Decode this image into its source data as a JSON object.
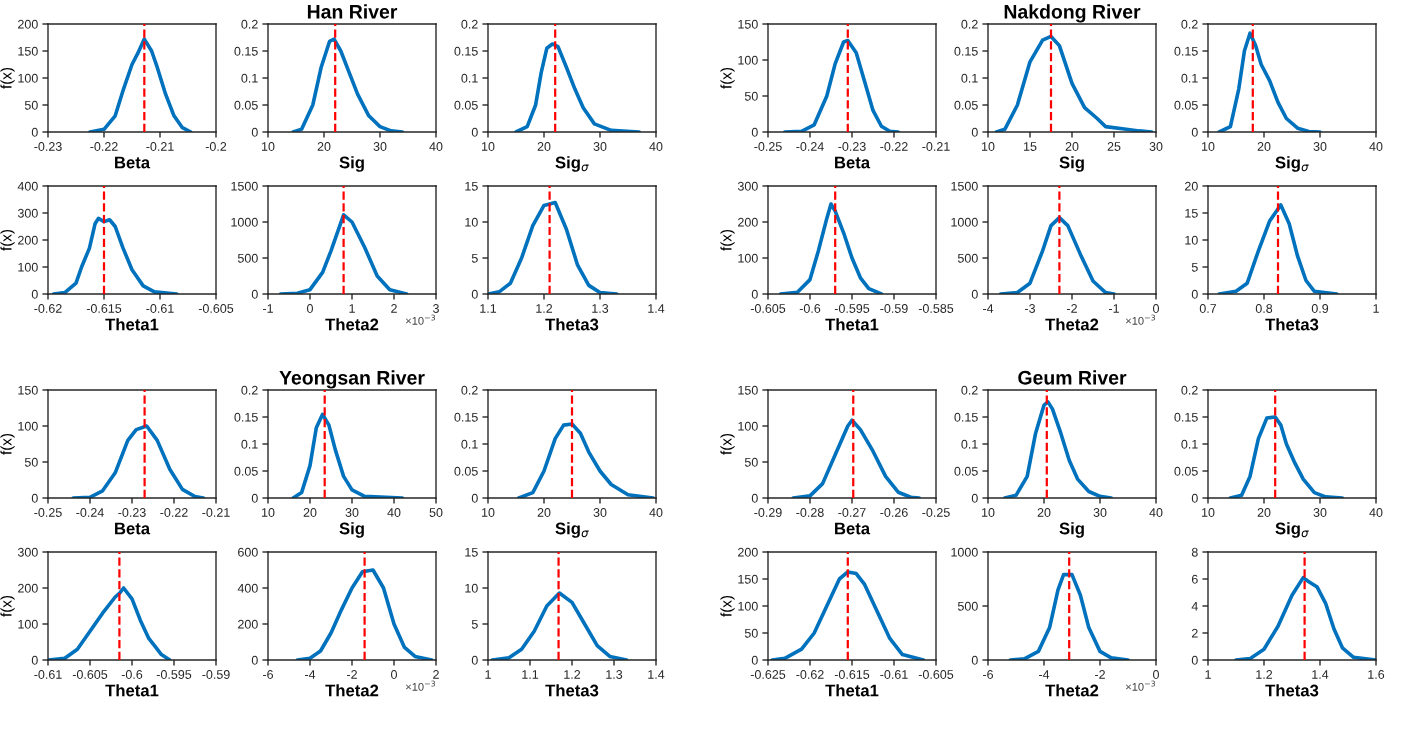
{
  "chart_data": [
    {
      "type": "line",
      "xlabel": "Beta",
      "ylabel": "f(x)",
      "xlim": [
        -0.23,
        -0.2
      ],
      "xticks": [
        -0.23,
        -0.22,
        -0.21,
        -0.2
      ],
      "ylim": [
        0,
        200
      ],
      "yticks": [
        0,
        50,
        100,
        150,
        200
      ],
      "ref_lines": [
        {
          "axis": "x",
          "value": -0.2128,
          "color": "#ff0000",
          "line_style": "dashed"
        }
      ],
      "series": [
        {
          "color": "#0072bd",
          "x": [
            -0.2225,
            -0.22,
            -0.218,
            -0.2165,
            -0.215,
            -0.214,
            -0.2128,
            -0.2115,
            -0.2105,
            -0.209,
            -0.2075,
            -0.206,
            -0.2045
          ],
          "values": [
            0,
            5,
            30,
            80,
            125,
            145,
            172,
            150,
            120,
            70,
            30,
            8,
            0
          ]
        }
      ]
    },
    {
      "type": "line",
      "title": "Han River",
      "xlabel": "Sig",
      "xlim": [
        10,
        40
      ],
      "xticks": [
        10,
        20,
        30,
        40
      ],
      "ylim": [
        0,
        0.2
      ],
      "yticks": [
        0,
        0.05,
        0.1,
        0.15,
        0.2
      ],
      "ref_lines": [
        {
          "axis": "x",
          "value": 22,
          "color": "#ff0000",
          "line_style": "dashed"
        }
      ],
      "series": [
        {
          "color": "#0072bd",
          "x": [
            14.5,
            16,
            18,
            19.5,
            21,
            21.8,
            23,
            24.5,
            26,
            28,
            30,
            32,
            34
          ],
          "values": [
            0,
            0.005,
            0.05,
            0.12,
            0.168,
            0.172,
            0.15,
            0.11,
            0.07,
            0.03,
            0.01,
            0.002,
            0
          ]
        }
      ]
    },
    {
      "type": "line",
      "xlabel": "Sig$_{σ}$",
      "xlim": [
        10,
        40
      ],
      "xticks": [
        10,
        20,
        30,
        40
      ],
      "ylim": [
        0,
        0.2
      ],
      "yticks": [
        0,
        0.05,
        0.1,
        0.15,
        0.2
      ],
      "ref_lines": [
        {
          "axis": "x",
          "value": 22,
          "color": "#ff0000",
          "line_style": "dashed"
        }
      ],
      "series": [
        {
          "color": "#0072bd",
          "x": [
            15,
            17,
            18.5,
            19.5,
            20.5,
            21.5,
            22.5,
            24,
            25.5,
            27,
            29,
            32,
            37
          ],
          "values": [
            0,
            0.01,
            0.05,
            0.11,
            0.155,
            0.163,
            0.158,
            0.12,
            0.08,
            0.045,
            0.015,
            0.003,
            0
          ]
        }
      ]
    },
    {
      "type": "line",
      "xlabel": "Theta1",
      "ylabel": "f(x)",
      "xlim": [
        -0.62,
        -0.605
      ],
      "xticks": [
        -0.62,
        -0.615,
        -0.61,
        -0.605
      ],
      "ylim": [
        0,
        400
      ],
      "yticks": [
        0,
        100,
        200,
        300,
        400
      ],
      "ref_lines": [
        {
          "axis": "x",
          "value": -0.615,
          "color": "#ff0000",
          "line_style": "dashed"
        }
      ],
      "series": [
        {
          "color": "#0072bd",
          "x": [
            -0.6195,
            -0.6185,
            -0.6175,
            -0.617,
            -0.6163,
            -0.6158,
            -0.6155,
            -0.615,
            -0.6145,
            -0.614,
            -0.6133,
            -0.6125,
            -0.6115,
            -0.6105,
            -0.6085
          ],
          "values": [
            0,
            5,
            40,
            100,
            170,
            260,
            280,
            268,
            275,
            250,
            170,
            90,
            30,
            8,
            0
          ]
        }
      ]
    },
    {
      "type": "line",
      "xlabel": "Theta2",
      "annotations": [
        "×10$^{−3}$"
      ],
      "xlim": [
        -1,
        3
      ],
      "xticks": [
        -1,
        0,
        1,
        2,
        3
      ],
      "ylim": [
        0,
        1500
      ],
      "yticks": [
        0,
        500,
        1000,
        1500
      ],
      "ref_lines": [
        {
          "axis": "x",
          "value": 0.8,
          "color": "#ff0000",
          "line_style": "dashed"
        }
      ],
      "series": [
        {
          "color": "#0072bd",
          "x": [
            -0.7,
            -0.3,
            0,
            0.3,
            0.5,
            0.8,
            1,
            1.3,
            1.6,
            1.9,
            2.3
          ],
          "values": [
            0,
            10,
            60,
            300,
            600,
            1100,
            1000,
            650,
            250,
            60,
            0
          ]
        }
      ]
    },
    {
      "type": "line",
      "xlabel": "Theta3",
      "xlim": [
        1.1,
        1.4
      ],
      "xticks": [
        1.1,
        1.2,
        1.3,
        1.4
      ],
      "ylim": [
        0,
        15
      ],
      "yticks": [
        0,
        5,
        10,
        15
      ],
      "ref_lines": [
        {
          "axis": "x",
          "value": 1.21,
          "color": "#ff0000",
          "line_style": "dashed"
        }
      ],
      "series": [
        {
          "color": "#0072bd",
          "x": [
            1.1,
            1.12,
            1.14,
            1.16,
            1.18,
            1.2,
            1.22,
            1.24,
            1.26,
            1.28,
            1.3,
            1.33
          ],
          "values": [
            0,
            0.3,
            1.5,
            5,
            9.5,
            12.3,
            12.7,
            9,
            4,
            1.2,
            0.2,
            0
          ]
        }
      ]
    },
    {
      "type": "line",
      "xlabel": "Beta",
      "ylabel": "f(x)",
      "xlim": [
        -0.25,
        -0.21
      ],
      "xticks": [
        -0.25,
        -0.24,
        -0.23,
        -0.22,
        -0.21
      ],
      "ylim": [
        0,
        150
      ],
      "yticks": [
        0,
        50,
        100,
        150
      ],
      "ref_lines": [
        {
          "axis": "x",
          "value": -0.231,
          "color": "#ff0000",
          "line_style": "dashed"
        }
      ],
      "series": [
        {
          "color": "#0072bd",
          "x": [
            -0.246,
            -0.242,
            -0.239,
            -0.236,
            -0.234,
            -0.232,
            -0.231,
            -0.229,
            -0.227,
            -0.225,
            -0.223,
            -0.221,
            -0.219
          ],
          "values": [
            0,
            1,
            10,
            50,
            95,
            125,
            127,
            110,
            70,
            30,
            8,
            1,
            0
          ]
        }
      ]
    },
    {
      "type": "line",
      "title": "Nakdong River",
      "xlabel": "Sig",
      "xlim": [
        10,
        30
      ],
      "xticks": [
        10,
        15,
        20,
        25,
        30
      ],
      "ylim": [
        0,
        0.2
      ],
      "yticks": [
        0,
        0.05,
        0.1,
        0.15,
        0.2
      ],
      "ref_lines": [
        {
          "axis": "x",
          "value": 17.5,
          "color": "#ff0000",
          "line_style": "dashed"
        }
      ],
      "series": [
        {
          "color": "#0072bd",
          "x": [
            11,
            12,
            13.5,
            15,
            16.5,
            17.5,
            18.5,
            20,
            21.5,
            23,
            24,
            26,
            28,
            29.5
          ],
          "values": [
            0,
            0.005,
            0.05,
            0.13,
            0.17,
            0.177,
            0.16,
            0.09,
            0.045,
            0.025,
            0.01,
            0.006,
            0.002,
            0
          ]
        }
      ]
    },
    {
      "type": "line",
      "xlabel": "Sig$_{σ}$",
      "xlim": [
        10,
        40
      ],
      "xticks": [
        10,
        20,
        30,
        40
      ],
      "ylim": [
        0,
        0.2
      ],
      "yticks": [
        0,
        0.05,
        0.1,
        0.15,
        0.2
      ],
      "ref_lines": [
        {
          "axis": "x",
          "value": 18,
          "color": "#ff0000",
          "line_style": "dashed"
        }
      ],
      "series": [
        {
          "color": "#0072bd",
          "x": [
            12,
            14,
            15.5,
            16.5,
            17.5,
            18.5,
            19.5,
            21,
            22.5,
            24,
            26,
            28,
            30
          ],
          "values": [
            0,
            0.01,
            0.08,
            0.15,
            0.183,
            0.16,
            0.125,
            0.095,
            0.055,
            0.025,
            0.007,
            0.001,
            0
          ]
        }
      ]
    },
    {
      "type": "line",
      "xlabel": "Theta1",
      "ylabel": "f(x)",
      "xlim": [
        -0.605,
        -0.585
      ],
      "xticks": [
        -0.605,
        -0.6,
        -0.595,
        -0.59,
        -0.585
      ],
      "ylim": [
        0,
        300
      ],
      "yticks": [
        0,
        100,
        200,
        300
      ],
      "ref_lines": [
        {
          "axis": "x",
          "value": -0.597,
          "color": "#ff0000",
          "line_style": "dashed"
        }
      ],
      "series": [
        {
          "color": "#0072bd",
          "x": [
            -0.6035,
            -0.6015,
            -0.6,
            -0.599,
            -0.598,
            -0.5975,
            -0.597,
            -0.596,
            -0.595,
            -0.594,
            -0.593,
            -0.5915
          ],
          "values": [
            0,
            5,
            40,
            120,
            210,
            250,
            230,
            170,
            100,
            45,
            15,
            0
          ]
        }
      ]
    },
    {
      "type": "line",
      "xlabel": "Theta2",
      "annotations": [
        "×10$^{−3}$"
      ],
      "xlim": [
        -4,
        0
      ],
      "xticks": [
        -4,
        -3,
        -2,
        -1,
        0
      ],
      "ylim": [
        0,
        1500
      ],
      "yticks": [
        0,
        500,
        1000,
        1500
      ],
      "ref_lines": [
        {
          "axis": "x",
          "value": -2.3,
          "color": "#ff0000",
          "line_style": "dashed"
        }
      ],
      "series": [
        {
          "color": "#0072bd",
          "x": [
            -3.7,
            -3.3,
            -3,
            -2.7,
            -2.5,
            -2.3,
            -2.1,
            -1.8,
            -1.5,
            -1.2,
            -1
          ],
          "values": [
            0,
            20,
            150,
            600,
            950,
            1060,
            950,
            550,
            180,
            20,
            0
          ]
        }
      ]
    },
    {
      "type": "line",
      "xlabel": "Theta3",
      "xlim": [
        0.7,
        1
      ],
      "xticks": [
        0.7,
        0.8,
        0.9,
        1
      ],
      "ylim": [
        0,
        20
      ],
      "yticks": [
        0,
        5,
        10,
        15,
        20
      ],
      "ref_lines": [
        {
          "axis": "x",
          "value": 0.825,
          "color": "#ff0000",
          "line_style": "dashed"
        }
      ],
      "series": [
        {
          "color": "#0072bd",
          "x": [
            0.72,
            0.75,
            0.77,
            0.79,
            0.81,
            0.82,
            0.83,
            0.845,
            0.86,
            0.875,
            0.89,
            0.93
          ],
          "values": [
            0,
            0.5,
            2,
            8,
            13.5,
            15,
            16.5,
            13,
            7,
            2.5,
            0.5,
            0
          ]
        }
      ]
    },
    {
      "type": "line",
      "xlabel": "Beta",
      "ylabel": "f(x)",
      "xlim": [
        -0.25,
        -0.21
      ],
      "xticks": [
        -0.25,
        -0.24,
        -0.23,
        -0.22,
        -0.21
      ],
      "ylim": [
        0,
        150
      ],
      "yticks": [
        0,
        50,
        100,
        150
      ],
      "ref_lines": [
        {
          "axis": "x",
          "value": -0.227,
          "color": "#ff0000",
          "line_style": "dashed"
        }
      ],
      "series": [
        {
          "color": "#0072bd",
          "x": [
            -0.244,
            -0.24,
            -0.237,
            -0.234,
            -0.231,
            -0.229,
            -0.2265,
            -0.224,
            -0.221,
            -0.218,
            -0.215,
            -0.213
          ],
          "values": [
            0,
            1,
            10,
            35,
            80,
            95,
            100,
            80,
            40,
            12,
            2,
            0
          ]
        }
      ]
    },
    {
      "type": "line",
      "title": "Yeongsan River",
      "xlabel": "Sig",
      "xlim": [
        10,
        50
      ],
      "xticks": [
        10,
        20,
        30,
        40,
        50
      ],
      "ylim": [
        0,
        0.2
      ],
      "yticks": [
        0,
        0.05,
        0.1,
        0.15,
        0.2
      ],
      "ref_lines": [
        {
          "axis": "x",
          "value": 23.5,
          "color": "#ff0000",
          "line_style": "dashed"
        }
      ],
      "series": [
        {
          "color": "#0072bd",
          "x": [
            16,
            18,
            20,
            21.5,
            23,
            24.5,
            26,
            28,
            30,
            33,
            42
          ],
          "values": [
            0,
            0.01,
            0.06,
            0.13,
            0.155,
            0.135,
            0.09,
            0.04,
            0.015,
            0.003,
            0
          ]
        }
      ]
    },
    {
      "type": "line",
      "xlabel": "Sig$_{σ}$",
      "xlim": [
        10,
        40
      ],
      "xticks": [
        10,
        20,
        30,
        40
      ],
      "ylim": [
        0,
        0.2
      ],
      "yticks": [
        0,
        0.05,
        0.1,
        0.15,
        0.2
      ],
      "ref_lines": [
        {
          "axis": "x",
          "value": 25,
          "color": "#ff0000",
          "line_style": "dashed"
        }
      ],
      "series": [
        {
          "color": "#0072bd",
          "x": [
            15.5,
            18,
            20,
            22,
            23.5,
            25,
            26.5,
            28,
            30,
            32,
            35,
            39.5
          ],
          "values": [
            0,
            0.01,
            0.05,
            0.11,
            0.135,
            0.137,
            0.12,
            0.085,
            0.05,
            0.025,
            0.006,
            0
          ]
        }
      ]
    },
    {
      "type": "line",
      "xlabel": "Theta1",
      "ylabel": "f(x)",
      "xlim": [
        -0.61,
        -0.59
      ],
      "xticks": [
        -0.61,
        -0.605,
        -0.6,
        -0.595,
        -0.59
      ],
      "ylim": [
        0,
        300
      ],
      "yticks": [
        0,
        100,
        200,
        300
      ],
      "ref_lines": [
        {
          "axis": "x",
          "value": -0.6015,
          "color": "#ff0000",
          "line_style": "dashed"
        }
      ],
      "series": [
        {
          "color": "#0072bd",
          "x": [
            -0.61,
            -0.608,
            -0.6065,
            -0.605,
            -0.6035,
            -0.602,
            -0.6015,
            -0.601,
            -0.6,
            -0.599,
            -0.598,
            -0.597,
            -0.5965,
            -0.5955
          ],
          "values": [
            0,
            5,
            30,
            80,
            130,
            175,
            185,
            200,
            170,
            110,
            60,
            30,
            15,
            0
          ]
        }
      ]
    },
    {
      "type": "line",
      "xlabel": "Theta2",
      "annotations": [
        "×10$^{−3}$"
      ],
      "xlim": [
        -6,
        2
      ],
      "xticks": [
        -6,
        -4,
        -2,
        0,
        2
      ],
      "ylim": [
        0,
        600
      ],
      "yticks": [
        0,
        200,
        400,
        600
      ],
      "ref_lines": [
        {
          "axis": "x",
          "value": -1.4,
          "color": "#ff0000",
          "line_style": "dashed"
        }
      ],
      "series": [
        {
          "color": "#0072bd",
          "x": [
            -4.6,
            -4,
            -3.5,
            -3,
            -2.5,
            -2,
            -1.5,
            -1,
            -0.5,
            0,
            0.5,
            1,
            1.8
          ],
          "values": [
            0,
            10,
            50,
            150,
            280,
            400,
            490,
            500,
            400,
            200,
            70,
            20,
            0
          ]
        }
      ]
    },
    {
      "type": "line",
      "xlabel": "Theta3",
      "xlim": [
        1,
        1.4
      ],
      "xticks": [
        1,
        1.1,
        1.2,
        1.3,
        1.4
      ],
      "ylim": [
        0,
        15
      ],
      "yticks": [
        0,
        5,
        10,
        15
      ],
      "ref_lines": [
        {
          "axis": "x",
          "value": 1.168,
          "color": "#ff0000",
          "line_style": "dashed"
        }
      ],
      "series": [
        {
          "color": "#0072bd",
          "x": [
            1.01,
            1.05,
            1.08,
            1.11,
            1.14,
            1.17,
            1.2,
            1.23,
            1.26,
            1.29,
            1.33
          ],
          "values": [
            0,
            0.3,
            1.5,
            4,
            7.5,
            9.3,
            8,
            5,
            2,
            0.5,
            0
          ]
        }
      ]
    },
    {
      "type": "line",
      "xlabel": "Beta",
      "ylabel": "f(x)",
      "xlim": [
        -0.29,
        -0.25
      ],
      "xticks": [
        -0.29,
        -0.28,
        -0.27,
        -0.26,
        -0.25
      ],
      "ylim": [
        0,
        150
      ],
      "yticks": [
        0,
        50,
        100,
        150
      ],
      "ref_lines": [
        {
          "axis": "x",
          "value": -0.2697,
          "color": "#ff0000",
          "line_style": "dashed"
        }
      ],
      "series": [
        {
          "color": "#0072bd",
          "x": [
            -0.284,
            -0.28,
            -0.277,
            -0.274,
            -0.271,
            -0.27,
            -0.268,
            -0.265,
            -0.262,
            -0.259,
            -0.256,
            -0.254
          ],
          "values": [
            0,
            3,
            20,
            60,
            100,
            108,
            95,
            65,
            30,
            8,
            1,
            0
          ]
        }
      ]
    },
    {
      "type": "line",
      "title": "Geum River",
      "xlabel": "Sig",
      "xlim": [
        10,
        40
      ],
      "xticks": [
        10,
        20,
        30,
        40
      ],
      "ylim": [
        0,
        0.2
      ],
      "yticks": [
        0,
        0.05,
        0.1,
        0.15,
        0.2
      ],
      "ref_lines": [
        {
          "axis": "x",
          "value": 20.5,
          "color": "#ff0000",
          "line_style": "dashed"
        }
      ],
      "series": [
        {
          "color": "#0072bd",
          "x": [
            13,
            15,
            17,
            18.5,
            20,
            20.7,
            21.5,
            23,
            24.5,
            26,
            28,
            30,
            32
          ],
          "values": [
            0,
            0.005,
            0.04,
            0.12,
            0.172,
            0.178,
            0.165,
            0.12,
            0.07,
            0.035,
            0.012,
            0.003,
            0
          ]
        }
      ]
    },
    {
      "type": "line",
      "xlabel": "Sig$_{σ}$",
      "xlim": [
        10,
        40
      ],
      "xticks": [
        10,
        20,
        30,
        40
      ],
      "ylim": [
        0,
        0.2
      ],
      "yticks": [
        0,
        0.05,
        0.1,
        0.15,
        0.2
      ],
      "ref_lines": [
        {
          "axis": "x",
          "value": 22,
          "color": "#ff0000",
          "line_style": "dashed"
        }
      ],
      "series": [
        {
          "color": "#0072bd",
          "x": [
            14,
            16,
            17.5,
            19,
            20.5,
            22,
            23,
            24,
            25.5,
            27,
            29,
            31,
            34
          ],
          "values": [
            0,
            0.005,
            0.04,
            0.11,
            0.148,
            0.15,
            0.135,
            0.1,
            0.065,
            0.035,
            0.01,
            0.002,
            0
          ]
        }
      ]
    },
    {
      "type": "line",
      "xlabel": "Theta1",
      "ylabel": "f(x)",
      "xlim": [
        -0.625,
        -0.605
      ],
      "xticks": [
        -0.625,
        -0.62,
        -0.615,
        -0.61,
        -0.605
      ],
      "ylim": [
        0,
        200
      ],
      "yticks": [
        0,
        50,
        100,
        150,
        200
      ],
      "ref_lines": [
        {
          "axis": "x",
          "value": -0.6155,
          "color": "#ff0000",
          "line_style": "dashed"
        }
      ],
      "series": [
        {
          "color": "#0072bd",
          "x": [
            -0.6245,
            -0.623,
            -0.621,
            -0.6195,
            -0.618,
            -0.6165,
            -0.6155,
            -0.6145,
            -0.6135,
            -0.612,
            -0.6105,
            -0.609,
            -0.6065
          ],
          "values": [
            0,
            3,
            20,
            50,
            100,
            150,
            163,
            160,
            140,
            90,
            40,
            10,
            0
          ]
        }
      ]
    },
    {
      "type": "line",
      "xlabel": "Theta2",
      "annotations": [
        "×10$^{−3}$"
      ],
      "xlim": [
        -6,
        0
      ],
      "xticks": [
        -6,
        -4,
        -2,
        0
      ],
      "ylim": [
        0,
        1000
      ],
      "yticks": [
        0,
        500,
        1000
      ],
      "ref_lines": [
        {
          "axis": "x",
          "value": -3.1,
          "color": "#ff0000",
          "line_style": "dashed"
        }
      ],
      "series": [
        {
          "color": "#0072bd",
          "x": [
            -5.2,
            -4.7,
            -4.2,
            -3.8,
            -3.5,
            -3.3,
            -3,
            -2.7,
            -2.4,
            -2,
            -1.6,
            -1
          ],
          "values": [
            0,
            10,
            80,
            300,
            650,
            790,
            790,
            600,
            300,
            80,
            20,
            0
          ]
        }
      ]
    },
    {
      "type": "line",
      "xlabel": "Theta3",
      "xlim": [
        1,
        1.6
      ],
      "xticks": [
        1,
        1.2,
        1.4,
        1.6
      ],
      "ylim": [
        0,
        8
      ],
      "yticks": [
        0,
        2,
        4,
        6,
        8
      ],
      "ref_lines": [
        {
          "axis": "x",
          "value": 1.345,
          "color": "#ff0000",
          "line_style": "dashed"
        }
      ],
      "series": [
        {
          "color": "#0072bd",
          "x": [
            1.1,
            1.15,
            1.2,
            1.25,
            1.3,
            1.34,
            1.36,
            1.39,
            1.42,
            1.45,
            1.48,
            1.52,
            1.6
          ],
          "values": [
            0,
            0.1,
            0.8,
            2.5,
            4.8,
            6.1,
            5.8,
            5.4,
            4.2,
            2.3,
            0.9,
            0.2,
            0
          ]
        }
      ]
    }
  ]
}
